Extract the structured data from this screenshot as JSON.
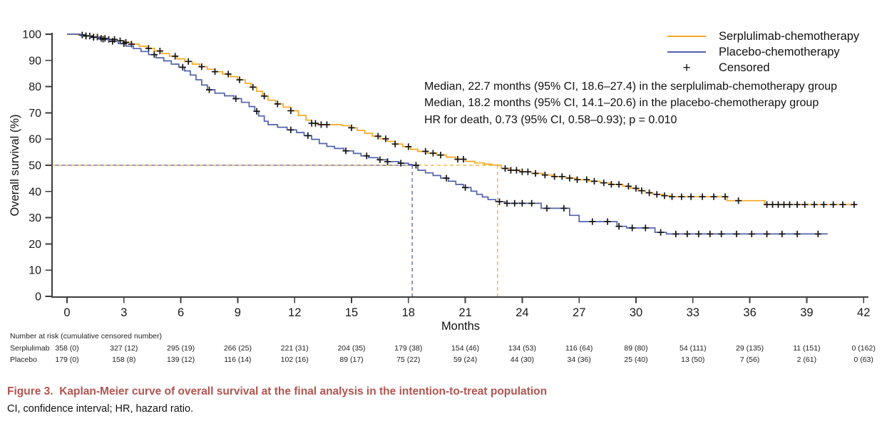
{
  "figure": {
    "caption": "Figure 3.  Kaplan-Meier curve of overall survival at the final analysis in the intention-to-treat population",
    "footnote": "CI, confidence interval; HR, hazard ratio.",
    "caption_color": "#B25450"
  },
  "chart_data": {
    "type": "line",
    "subtype": "kaplan-meier-step",
    "title": "",
    "xlabel": "Months",
    "ylabel": "Overall survival (%)",
    "xlim": [
      0,
      42
    ],
    "ylim": [
      0,
      100
    ],
    "x_ticks": [
      0,
      3,
      6,
      9,
      12,
      15,
      18,
      21,
      24,
      27,
      30,
      33,
      36,
      39,
      42
    ],
    "y_ticks": [
      0,
      10,
      20,
      30,
      40,
      50,
      60,
      70,
      80,
      90,
      100
    ],
    "grid": false,
    "legend_position": "top-right",
    "legend": [
      {
        "name": "Serplulimab-chemotherapy",
        "color": "#F7A823",
        "kind": "line"
      },
      {
        "name": "Placebo-chemotherapy",
        "color": "#5262AB",
        "kind": "line"
      },
      {
        "name": "Censored",
        "symbol": "+",
        "kind": "marker"
      }
    ],
    "annotations": [
      "Median, 22.7 months (95% CI, 18.6–27.4) in the serplulimab-chemotherapy group",
      "Median, 18.2 months (95% CI, 14.1–20.6) in the placebo-chemotherapy group",
      "HR for death, 0.73 (95% CI, 0.58–0.93); p = 0.010"
    ],
    "medians": {
      "serplulimab_months": 22.7,
      "placebo_months": 18.2,
      "survival_pct": 50
    },
    "series": [
      {
        "name": "Serplulimab-chemotherapy",
        "id": "serplulimab",
        "color": "#F7A823",
        "points": [
          [
            0,
            100
          ],
          [
            0.6,
            99.7
          ],
          [
            1.0,
            99.3
          ],
          [
            1.4,
            98.9
          ],
          [
            1.8,
            98.4
          ],
          [
            2.2,
            98.0
          ],
          [
            2.6,
            97.5
          ],
          [
            3.0,
            96.9
          ],
          [
            3.4,
            96.2
          ],
          [
            3.8,
            95.4
          ],
          [
            4.2,
            94.6
          ],
          [
            4.6,
            93.6
          ],
          [
            5.0,
            92.6
          ],
          [
            5.4,
            91.6
          ],
          [
            5.8,
            90.6
          ],
          [
            6.2,
            89.6
          ],
          [
            6.6,
            88.6
          ],
          [
            7.0,
            87.6
          ],
          [
            7.4,
            86.6
          ],
          [
            7.8,
            85.7
          ],
          [
            8.2,
            84.8
          ],
          [
            8.6,
            83.8
          ],
          [
            9.0,
            82.6
          ],
          [
            9.4,
            81.2
          ],
          [
            9.7,
            79.8
          ],
          [
            10.0,
            78.2
          ],
          [
            10.3,
            76.4
          ],
          [
            10.6,
            74.8
          ],
          [
            11.0,
            73.4
          ],
          [
            11.4,
            72.2
          ],
          [
            11.8,
            70.8
          ],
          [
            12.2,
            69.0
          ],
          [
            12.6,
            67.2
          ],
          [
            12.9,
            66.0
          ],
          [
            13.2,
            65.5
          ],
          [
            14.5,
            65.1
          ],
          [
            14.9,
            64.3
          ],
          [
            15.3,
            63.3
          ],
          [
            15.7,
            62.2
          ],
          [
            16.1,
            61.1
          ],
          [
            16.5,
            60.1
          ],
          [
            16.9,
            59.1
          ],
          [
            17.3,
            58.1
          ],
          [
            17.7,
            57.1
          ],
          [
            18.1,
            56.1
          ],
          [
            18.5,
            55.3
          ],
          [
            19.0,
            54.6
          ],
          [
            19.5,
            53.9
          ],
          [
            20.0,
            53.1
          ],
          [
            20.5,
            52.3
          ],
          [
            21.0,
            51.5
          ],
          [
            21.5,
            50.9
          ],
          [
            22.0,
            50.4
          ],
          [
            22.4,
            50.1
          ],
          [
            22.7,
            50.0
          ],
          [
            22.9,
            48.8
          ],
          [
            23.4,
            48.1
          ],
          [
            23.9,
            47.5
          ],
          [
            24.5,
            46.9
          ],
          [
            25.1,
            46.3
          ],
          [
            25.7,
            45.7
          ],
          [
            26.3,
            45.1
          ],
          [
            26.9,
            44.5
          ],
          [
            27.5,
            43.9
          ],
          [
            28.1,
            43.3
          ],
          [
            28.7,
            42.7
          ],
          [
            29.3,
            42.0
          ],
          [
            29.7,
            41.2
          ],
          [
            30.1,
            40.3
          ],
          [
            30.5,
            39.5
          ],
          [
            30.9,
            38.9
          ],
          [
            31.4,
            38.4
          ],
          [
            31.8,
            38.0
          ],
          [
            34.8,
            36.5
          ],
          [
            36.8,
            35.0
          ],
          [
            41.6,
            35.0
          ]
        ],
        "censor_times": [
          0.8,
          1.0,
          1.2,
          1.4,
          1.6,
          1.8,
          2.0,
          2.2,
          2.5,
          2.8,
          3.1,
          3.4,
          4.3,
          4.9,
          5.7,
          6.4,
          7.1,
          7.8,
          8.5,
          9.1,
          9.8,
          10.4,
          11.1,
          11.8,
          12.9,
          13.1,
          13.4,
          13.7,
          15.0,
          16.4,
          16.8,
          17.3,
          18.0,
          18.9,
          19.3,
          19.7,
          20.6,
          20.9,
          23.1,
          23.4,
          23.7,
          24.0,
          24.3,
          24.7,
          25.2,
          25.7,
          26.1,
          26.5,
          26.9,
          27.4,
          27.8,
          28.3,
          28.7,
          29.1,
          29.6,
          30.0,
          30.3,
          30.7,
          31.1,
          31.5,
          31.9,
          32.4,
          32.9,
          33.5,
          34.1,
          34.7,
          35.4,
          36.9,
          37.2,
          37.5,
          37.8,
          38.1,
          38.5,
          38.9,
          39.4,
          39.9,
          40.4,
          40.9,
          41.5
        ]
      },
      {
        "name": "Placebo-chemotherapy",
        "id": "placebo",
        "color": "#5262AB",
        "points": [
          [
            0,
            100
          ],
          [
            0.7,
            99.4
          ],
          [
            1.2,
            98.8
          ],
          [
            1.7,
            98.1
          ],
          [
            2.2,
            97.3
          ],
          [
            2.7,
            96.4
          ],
          [
            3.1,
            95.5
          ],
          [
            3.5,
            94.5
          ],
          [
            3.9,
            93.4
          ],
          [
            4.3,
            92.2
          ],
          [
            4.7,
            91.0
          ],
          [
            5.1,
            89.8
          ],
          [
            5.5,
            88.6
          ],
          [
            5.9,
            87.4
          ],
          [
            6.2,
            86.0
          ],
          [
            6.5,
            84.4
          ],
          [
            6.8,
            82.6
          ],
          [
            7.1,
            80.6
          ],
          [
            7.4,
            78.8
          ],
          [
            7.8,
            77.5
          ],
          [
            8.3,
            76.5
          ],
          [
            8.8,
            75.4
          ],
          [
            9.2,
            74.0
          ],
          [
            9.6,
            72.4
          ],
          [
            9.9,
            70.6
          ],
          [
            10.1,
            68.8
          ],
          [
            10.4,
            66.8
          ],
          [
            10.6,
            65.5
          ],
          [
            11.1,
            64.5
          ],
          [
            11.6,
            63.5
          ],
          [
            12.1,
            62.5
          ],
          [
            12.5,
            61.3
          ],
          [
            12.9,
            59.9
          ],
          [
            13.3,
            58.3
          ],
          [
            13.7,
            57.2
          ],
          [
            14.1,
            56.4
          ],
          [
            14.6,
            55.5
          ],
          [
            15.1,
            54.5
          ],
          [
            15.5,
            53.6
          ],
          [
            15.9,
            52.9
          ],
          [
            16.4,
            52.1
          ],
          [
            16.9,
            51.4
          ],
          [
            17.5,
            50.8
          ],
          [
            18.0,
            50.3
          ],
          [
            18.2,
            50.0
          ],
          [
            18.5,
            48.1
          ],
          [
            18.9,
            47.1
          ],
          [
            19.3,
            46.1
          ],
          [
            19.7,
            45.1
          ],
          [
            20.1,
            43.9
          ],
          [
            20.5,
            42.7
          ],
          [
            20.9,
            41.5
          ],
          [
            21.3,
            40.1
          ],
          [
            21.6,
            38.9
          ],
          [
            21.9,
            37.9
          ],
          [
            22.2,
            36.9
          ],
          [
            22.6,
            36.1
          ],
          [
            23.1,
            35.5
          ],
          [
            25.0,
            33.6
          ],
          [
            26.5,
            30.9
          ],
          [
            27.0,
            28.5
          ],
          [
            29.0,
            26.7
          ],
          [
            29.5,
            26.1
          ],
          [
            31.0,
            24.4
          ],
          [
            31.6,
            23.8
          ],
          [
            40.1,
            23.8
          ]
        ],
        "censor_times": [
          1.0,
          1.4,
          1.9,
          2.4,
          3.0,
          4.6,
          6.1,
          7.5,
          8.9,
          10.0,
          11.8,
          12.7,
          14.7,
          15.8,
          16.5,
          16.9,
          17.6,
          18.4,
          20.0,
          21.0,
          22.8,
          23.2,
          23.6,
          24.0,
          24.5,
          25.3,
          26.2,
          27.7,
          28.5,
          29.1,
          29.8,
          30.5,
          31.3,
          32.1,
          32.7,
          33.3,
          33.9,
          34.5,
          35.3,
          36.1,
          36.9,
          37.7,
          38.5,
          39.6
        ]
      }
    ],
    "risk_table": {
      "header": "Number at risk (cumulative censored number)",
      "months": [
        0,
        3,
        6,
        9,
        12,
        15,
        18,
        21,
        24,
        27,
        30,
        33,
        36,
        39,
        42
      ],
      "rows": [
        {
          "label": "Serplulimab",
          "values": [
            "358 (0)",
            "327 (12)",
            "295 (19)",
            "266 (25)",
            "221 (31)",
            "204 (35)",
            "179 (38)",
            "154 (46)",
            "134 (53)",
            "116 (64)",
            "89 (80)",
            "54 (111)",
            "29 (135)",
            "11 (151)",
            "0 (162)"
          ]
        },
        {
          "label": "Placebo",
          "values": [
            "179 (0)",
            "158 (8)",
            "139 (12)",
            "116 (14)",
            "102 (16)",
            "89 (17)",
            "75 (22)",
            "59 (24)",
            "44 (30)",
            "34 (36)",
            "25 (40)",
            "13 (50)",
            "7 (56)",
            "2 (61)",
            "0 (63)"
          ]
        }
      ]
    },
    "colors": {
      "axis": "#3C3C3C",
      "censor": "#141414",
      "tick_label": "#1a1a1a"
    }
  }
}
